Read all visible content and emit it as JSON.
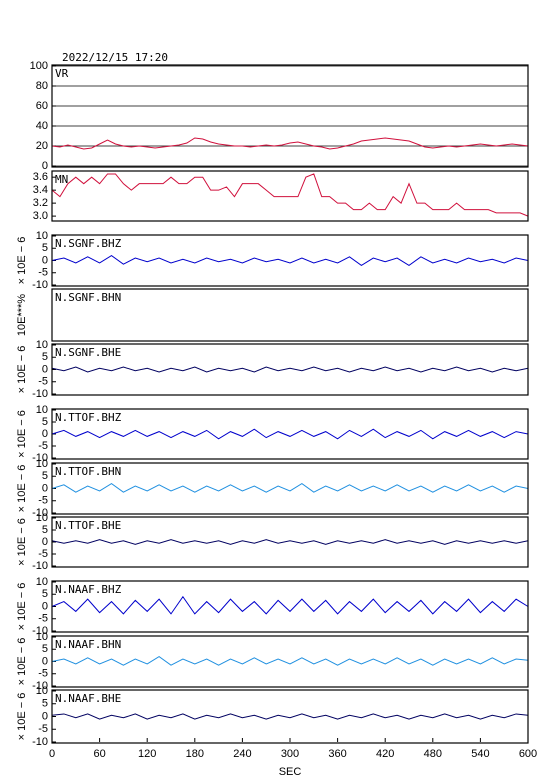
{
  "chart_data": [
    {
      "type": "line",
      "title": "2022/12/15 17:20",
      "label": "VR",
      "xlim": [
        0,
        600
      ],
      "ylim": [
        0,
        100
      ],
      "yticks": [
        0,
        20,
        40,
        60,
        80,
        100
      ],
      "grid": true,
      "x": [
        0,
        10,
        20,
        30,
        40,
        50,
        60,
        70,
        80,
        90,
        100,
        110,
        120,
        130,
        140,
        150,
        160,
        170,
        180,
        190,
        200,
        210,
        220,
        230,
        240,
        250,
        260,
        270,
        280,
        290,
        300,
        310,
        320,
        330,
        340,
        350,
        360,
        370,
        380,
        390,
        400,
        410,
        420,
        430,
        440,
        450,
        460,
        470,
        480,
        490,
        500,
        510,
        520,
        530,
        540,
        550,
        560,
        570,
        580,
        590,
        600
      ],
      "series": [
        {
          "color": "#d0103c",
          "values": [
            20,
            19,
            21,
            19,
            17,
            18,
            22,
            26,
            22,
            20,
            19,
            20,
            19,
            18,
            19,
            20,
            21,
            23,
            28,
            27,
            24,
            22,
            21,
            20,
            20,
            19,
            20,
            21,
            20,
            21,
            23,
            24,
            22,
            20,
            19,
            17,
            18,
            20,
            22,
            25,
            26,
            27,
            28,
            27,
            26,
            25,
            22,
            19,
            18,
            19,
            20,
            19,
            20,
            21,
            22,
            21,
            20,
            21,
            22,
            21,
            20
          ]
        }
      ]
    },
    {
      "type": "line",
      "label": "MN",
      "xlim": [
        0,
        600
      ],
      "ylim": [
        2.94,
        3.68
      ],
      "yticks": [
        {
          "value": 3,
          "label": "3.0"
        },
        3.2,
        3.4,
        3.6
      ],
      "x": [
        0,
        10,
        20,
        30,
        40,
        50,
        60,
        70,
        80,
        90,
        100,
        110,
        120,
        130,
        140,
        150,
        160,
        170,
        180,
        190,
        200,
        210,
        220,
        230,
        240,
        250,
        260,
        270,
        280,
        290,
        300,
        310,
        320,
        330,
        340,
        350,
        360,
        370,
        380,
        390,
        400,
        410,
        420,
        430,
        440,
        450,
        460,
        470,
        480,
        490,
        500,
        510,
        520,
        530,
        540,
        550,
        560,
        570,
        580,
        590,
        600
      ],
      "series": [
        {
          "color": "#d0103c",
          "values": [
            3.4,
            3.3,
            3.5,
            3.6,
            3.5,
            3.6,
            3.5,
            3.65,
            3.65,
            3.5,
            3.4,
            3.5,
            3.5,
            3.5,
            3.5,
            3.6,
            3.5,
            3.5,
            3.6,
            3.6,
            3.4,
            3.4,
            3.45,
            3.3,
            3.5,
            3.5,
            3.5,
            3.4,
            3.3,
            3.3,
            3.3,
            3.3,
            3.6,
            3.65,
            3.3,
            3.3,
            3.2,
            3.2,
            3.1,
            3.1,
            3.2,
            3.1,
            3.1,
            3.3,
            3.2,
            3.5,
            3.2,
            3.2,
            3.1,
            3.1,
            3.1,
            3.2,
            3.1,
            3.1,
            3.1,
            3.1,
            3.05,
            3.05,
            3.05,
            3.05,
            3.0
          ]
        }
      ]
    },
    {
      "type": "line",
      "label": "N.SGNF.BHZ",
      "ylabel": "× 10E − 6",
      "xlim": [
        0,
        600
      ],
      "ylim": [
        -10,
        10
      ],
      "yticks": [
        -10,
        -5,
        0,
        5,
        10
      ],
      "x": [
        0,
        15,
        30,
        45,
        60,
        75,
        90,
        105,
        120,
        135,
        150,
        165,
        180,
        195,
        210,
        225,
        240,
        255,
        270,
        285,
        300,
        315,
        330,
        345,
        360,
        375,
        390,
        405,
        420,
        435,
        450,
        465,
        480,
        495,
        510,
        525,
        540,
        555,
        570,
        585,
        600
      ],
      "series": [
        {
          "color": "#0000cc",
          "values": [
            0,
            1,
            -1,
            1.5,
            -1,
            2,
            -1.5,
            1,
            -0.5,
            1,
            -1,
            0.5,
            -1,
            1,
            -0.5,
            0.5,
            -1,
            1,
            -0.5,
            0.5,
            -1,
            1,
            -1,
            0.5,
            -1,
            1.5,
            -2,
            1,
            -0.5,
            1,
            -2,
            1.5,
            -1,
            0.5,
            -1,
            1,
            -0.5,
            0.5,
            -1,
            1,
            0
          ]
        }
      ]
    },
    {
      "type": "line",
      "label": "N.SGNF.BHN",
      "ylabel": "10E***%",
      "xlim": [
        0,
        600
      ]
    },
    {
      "type": "line",
      "label": "N.SGNF.BHE",
      "ylabel": "× 10E − 6",
      "xlim": [
        0,
        600
      ],
      "ylim": [
        -10,
        10
      ],
      "yticks": [
        -10,
        -5,
        0,
        5,
        10
      ],
      "x": [
        0,
        15,
        30,
        45,
        60,
        75,
        90,
        105,
        120,
        135,
        150,
        165,
        180,
        195,
        210,
        225,
        240,
        255,
        270,
        285,
        300,
        315,
        330,
        345,
        360,
        375,
        390,
        405,
        420,
        435,
        450,
        465,
        480,
        495,
        510,
        525,
        540,
        555,
        570,
        585,
        600
      ],
      "series": [
        {
          "color": "#000060",
          "values": [
            0.5,
            -0.5,
            1,
            -1,
            0.5,
            -0.5,
            1,
            -0.5,
            0.5,
            -1,
            0.5,
            -0.5,
            1,
            -1,
            0.5,
            -0.5,
            0.5,
            -1,
            1,
            -0.5,
            0.5,
            -0.5,
            1,
            -0.5,
            0.5,
            -1,
            0.5,
            -0.5,
            1,
            -0.5,
            0.5,
            -1,
            0.5,
            -0.5,
            1,
            -0.5,
            0.5,
            -1,
            0.5,
            -0.5,
            0.5
          ]
        }
      ]
    },
    {
      "type": "line",
      "label": "N.TTOF.BHZ",
      "ylabel": "× 10E − 6",
      "xlim": [
        0,
        600
      ],
      "ylim": [
        -10,
        10
      ],
      "yticks": [
        -10,
        -5,
        0,
        5,
        10
      ],
      "x": [
        0,
        15,
        30,
        45,
        60,
        75,
        90,
        105,
        120,
        135,
        150,
        165,
        180,
        195,
        210,
        225,
        240,
        255,
        270,
        285,
        300,
        315,
        330,
        345,
        360,
        375,
        390,
        405,
        420,
        435,
        450,
        465,
        480,
        495,
        510,
        525,
        540,
        555,
        570,
        585,
        600
      ],
      "series": [
        {
          "color": "#0000cc",
          "values": [
            0,
            1.5,
            -1,
            1,
            -1.5,
            1,
            -1,
            1.5,
            -1,
            1,
            -1.5,
            1,
            -1,
            1.5,
            -2,
            1,
            -1,
            2,
            -1.5,
            1,
            -1,
            1.5,
            -1,
            1,
            -2,
            1.5,
            -1,
            2,
            -1.5,
            1,
            -1,
            1.5,
            -2,
            1,
            -1,
            1.5,
            -1,
            1,
            -1.5,
            1,
            0
          ]
        }
      ]
    },
    {
      "type": "line",
      "label": "N.TTOF.BHN",
      "ylabel": "× 10E − 6",
      "xlim": [
        0,
        600
      ],
      "ylim": [
        -10,
        10
      ],
      "yticks": [
        -10,
        -5,
        0,
        5,
        10
      ],
      "x": [
        0,
        15,
        30,
        45,
        60,
        75,
        90,
        105,
        120,
        135,
        150,
        165,
        180,
        195,
        210,
        225,
        240,
        255,
        270,
        285,
        300,
        315,
        330,
        345,
        360,
        375,
        390,
        405,
        420,
        435,
        450,
        465,
        480,
        495,
        510,
        525,
        540,
        555,
        570,
        585,
        600
      ],
      "series": [
        {
          "color": "#2090e0",
          "values": [
            0,
            1.5,
            -1.5,
            1,
            -1,
            2,
            -1.5,
            1,
            -1,
            1.5,
            -1,
            1,
            -1.5,
            1,
            -1,
            1.5,
            -1,
            1,
            -1.5,
            1,
            -1,
            2,
            -1.5,
            1,
            -1,
            1.5,
            -1,
            1,
            -1,
            1.5,
            -1,
            1,
            -1.5,
            1,
            -1,
            1.5,
            -1,
            1,
            -1.5,
            1,
            0
          ]
        }
      ]
    },
    {
      "type": "line",
      "label": "N.TTOF.BHE",
      "ylabel": "× 10E − 6",
      "xlim": [
        0,
        600
      ],
      "ylim": [
        -10,
        10
      ],
      "yticks": [
        -10,
        -5,
        0,
        5,
        10
      ],
      "x": [
        0,
        15,
        30,
        45,
        60,
        75,
        90,
        105,
        120,
        135,
        150,
        165,
        180,
        195,
        210,
        225,
        240,
        255,
        270,
        285,
        300,
        315,
        330,
        345,
        360,
        375,
        390,
        405,
        420,
        435,
        450,
        465,
        480,
        495,
        510,
        525,
        540,
        555,
        570,
        585,
        600
      ],
      "series": [
        {
          "color": "#000060",
          "values": [
            0.5,
            -0.5,
            0.5,
            -0.5,
            1,
            -0.5,
            0.5,
            -1,
            0.5,
            -0.5,
            1,
            -0.5,
            0.5,
            -0.5,
            0.5,
            -1,
            0.5,
            -0.5,
            1,
            -0.5,
            0.5,
            -0.5,
            0.5,
            -1,
            0.5,
            -0.5,
            0.5,
            -0.5,
            1,
            -0.5,
            0.5,
            -0.5,
            0.5,
            -1,
            0.5,
            -0.5,
            0.5,
            -0.5,
            0.5,
            -0.5,
            0.5
          ]
        }
      ]
    },
    {
      "type": "line",
      "label": "N.NAAF.BHZ",
      "ylabel": "× 10E − 6",
      "xlim": [
        0,
        600
      ],
      "ylim": [
        -10,
        10
      ],
      "yticks": [
        -10,
        -5,
        0,
        5,
        10
      ],
      "x": [
        0,
        15,
        30,
        45,
        60,
        75,
        90,
        105,
        120,
        135,
        150,
        165,
        180,
        195,
        210,
        225,
        240,
        255,
        270,
        285,
        300,
        315,
        330,
        345,
        360,
        375,
        390,
        405,
        420,
        435,
        450,
        465,
        480,
        495,
        510,
        525,
        540,
        555,
        570,
        585,
        600
      ],
      "series": [
        {
          "color": "#0000cc",
          "values": [
            0,
            2,
            -2,
            3,
            -2.5,
            2,
            -3,
            2.5,
            -2,
            3,
            -3,
            4,
            -3,
            2,
            -2.5,
            3,
            -2,
            2,
            -3,
            2.5,
            -2,
            3,
            -2,
            2.5,
            -3,
            2,
            -2,
            3,
            -2.5,
            2,
            -2,
            2.5,
            -3,
            2,
            -2,
            3,
            -2.5,
            2,
            -2,
            3,
            0
          ]
        }
      ]
    },
    {
      "type": "line",
      "label": "N.NAAF.BHN",
      "ylabel": "× 10E − 6",
      "xlim": [
        0,
        600
      ],
      "ylim": [
        -10,
        10
      ],
      "yticks": [
        -10,
        -5,
        0,
        5,
        10
      ],
      "x": [
        0,
        15,
        30,
        45,
        60,
        75,
        90,
        105,
        120,
        135,
        150,
        165,
        180,
        195,
        210,
        225,
        240,
        255,
        270,
        285,
        300,
        315,
        330,
        345,
        360,
        375,
        390,
        405,
        420,
        435,
        450,
        465,
        480,
        495,
        510,
        525,
        540,
        555,
        570,
        585,
        600
      ],
      "series": [
        {
          "color": "#2090e0",
          "values": [
            0,
            1,
            -1,
            1.5,
            -1,
            1,
            -1.5,
            1,
            -1,
            2,
            -1.5,
            1,
            -1,
            1,
            -1.5,
            1,
            -1,
            1.5,
            -1,
            1,
            -1,
            1.5,
            -1,
            1,
            -1.5,
            1,
            -1,
            1,
            -1,
            1.5,
            -1,
            1,
            -1.5,
            1,
            -1,
            1,
            -1,
            1.5,
            -1,
            1,
            0.5
          ]
        }
      ]
    },
    {
      "type": "line",
      "label": "N.NAAF.BHE",
      "ylabel": "× 10E − 6",
      "xlabel": "SEC",
      "xlim": [
        0,
        600
      ],
      "xticks": [
        0,
        60,
        120,
        180,
        240,
        300,
        360,
        420,
        480,
        540,
        600
      ],
      "ylim": [
        -10,
        10
      ],
      "yticks": [
        -10,
        -5,
        0,
        5,
        10
      ],
      "x": [
        0,
        15,
        30,
        45,
        60,
        75,
        90,
        105,
        120,
        135,
        150,
        165,
        180,
        195,
        210,
        225,
        240,
        255,
        270,
        285,
        300,
        315,
        330,
        345,
        360,
        375,
        390,
        405,
        420,
        435,
        450,
        465,
        480,
        495,
        510,
        525,
        540,
        555,
        570,
        585,
        600
      ],
      "series": [
        {
          "color": "#000060",
          "values": [
            0.5,
            1,
            -0.5,
            1,
            -1,
            0.5,
            -0.5,
            1,
            -1,
            0.5,
            -0.5,
            1,
            -1,
            0.5,
            -0.5,
            1,
            -0.5,
            0.5,
            -1,
            0.5,
            -0.5,
            1,
            -0.5,
            0.5,
            -1,
            0.5,
            -0.5,
            1,
            -0.5,
            0.5,
            -1,
            0.5,
            -0.5,
            1,
            -0.5,
            0.5,
            -1,
            0.5,
            -0.5,
            1,
            0.5
          ]
        }
      ]
    }
  ]
}
